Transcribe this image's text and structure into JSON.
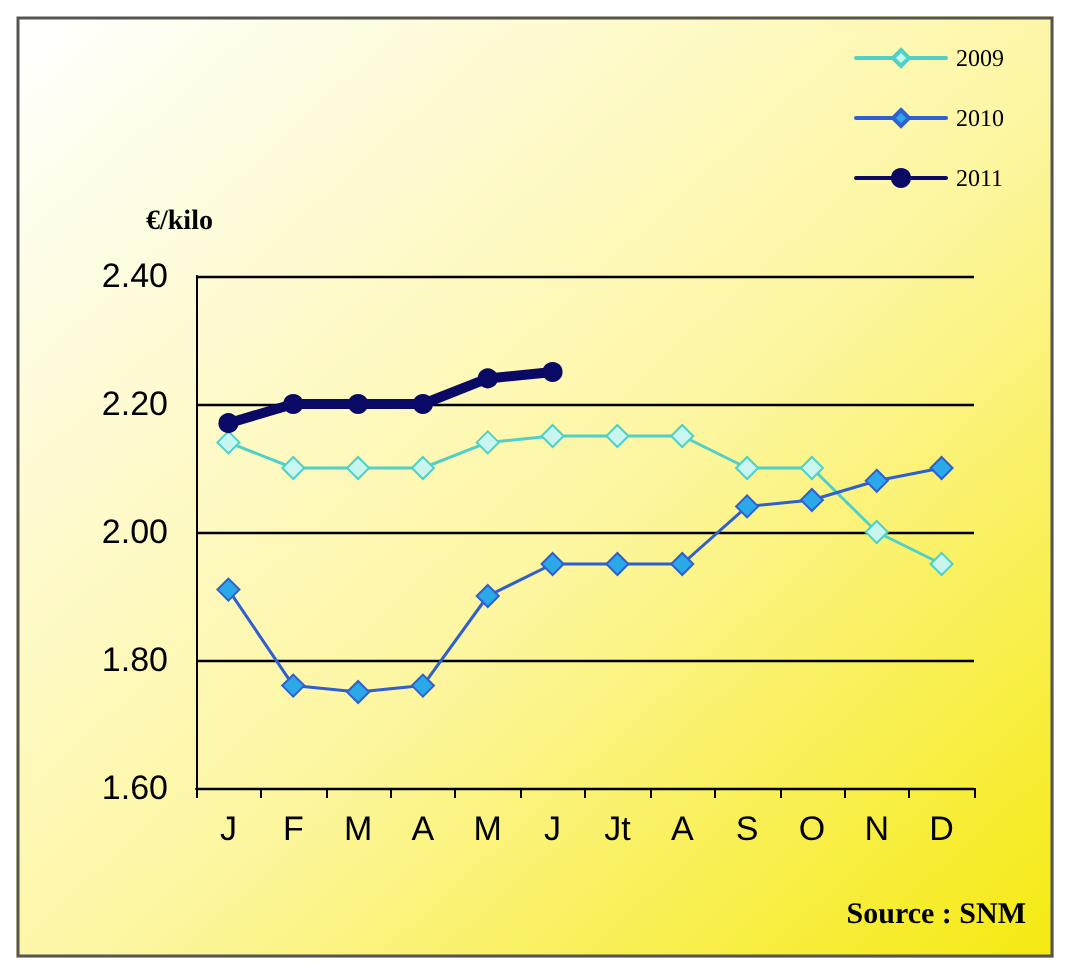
{
  "chart_data": {
    "type": "line",
    "ylabel": "€/kilo",
    "categories": [
      "J",
      "F",
      "M",
      "A",
      "M",
      "J",
      "Jt",
      "A",
      "S",
      "O",
      "N",
      "D"
    ],
    "series": [
      {
        "name": "2009",
        "color": "#4fd0c8",
        "marker": "diamond",
        "values": [
          2.14,
          2.1,
          2.1,
          2.1,
          2.14,
          2.15,
          2.15,
          2.15,
          2.1,
          2.1,
          2.0,
          1.95
        ]
      },
      {
        "name": "2010",
        "color": "#2f5fd0",
        "marker": "diamond",
        "values": [
          1.91,
          1.76,
          1.75,
          1.76,
          1.9,
          1.95,
          1.95,
          1.95,
          2.04,
          2.05,
          2.08,
          2.1
        ]
      },
      {
        "name": "2011",
        "color": "#0a0a66",
        "marker": "circle",
        "values": [
          2.17,
          2.2,
          2.2,
          2.2,
          2.24,
          2.25,
          null,
          null,
          null,
          null,
          null,
          null
        ]
      }
    ],
    "ylim": [
      1.6,
      2.4
    ],
    "yticks": [
      {
        "value": 1.6,
        "label": "1.60"
      },
      {
        "value": 1.8,
        "label": "1.80"
      },
      {
        "value": 2.0,
        "label": "2.00"
      },
      {
        "value": 2.2,
        "label": "2.20"
      },
      {
        "value": 2.4,
        "label": "2.40"
      }
    ],
    "grid": "y",
    "legend": "top right",
    "line_style": "solid",
    "annotations": [
      "Source : SNM"
    ]
  }
}
